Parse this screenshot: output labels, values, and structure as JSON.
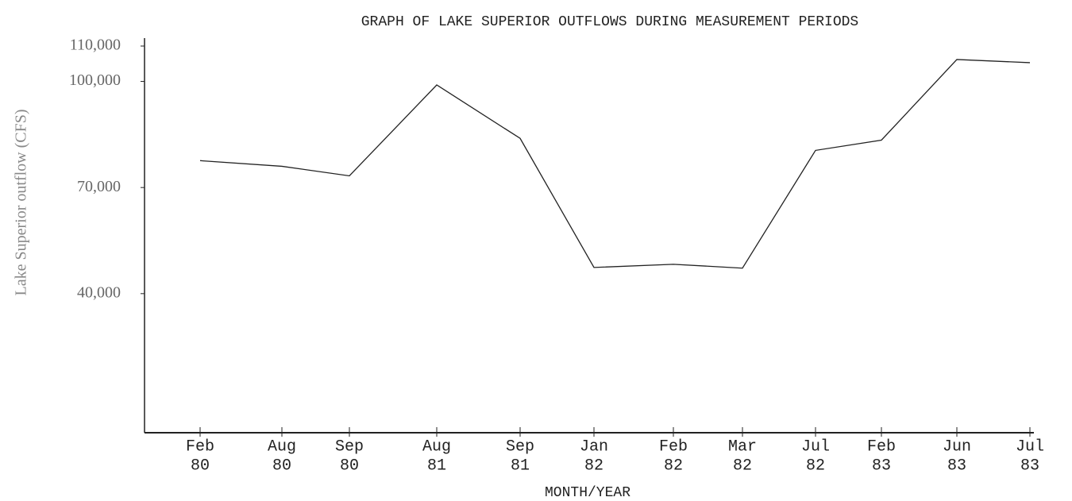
{
  "chart_data": {
    "type": "line",
    "title": "GRAPH OF LAKE SUPERIOR OUTFLOWS DURING MEASUREMENT PERIODS",
    "xlabel": "MONTH/YEAR",
    "ylabel": "Lake Superior outflow (CFS)",
    "categories": [
      [
        "Feb",
        "80"
      ],
      [
        "Aug",
        "80"
      ],
      [
        "Sep",
        "80"
      ],
      [
        "Aug",
        "81"
      ],
      [
        "Sep",
        "81"
      ],
      [
        "Jan",
        "82"
      ],
      [
        "Feb",
        "82"
      ],
      [
        "Mar",
        "82"
      ],
      [
        "Jul",
        "82"
      ],
      [
        "Feb",
        "83"
      ],
      [
        "Jun",
        "83"
      ],
      [
        "Jul",
        "83"
      ]
    ],
    "series": [
      {
        "name": "Lake Superior outflow",
        "color": "#222222",
        "values": [
          77600,
          76000,
          73300,
          99000,
          83900,
          47400,
          48300,
          47200,
          80500,
          83400,
          106200,
          105300
        ]
      }
    ],
    "ylim": [
      0,
      110000
    ],
    "yticks": [
      {
        "value": 40000,
        "label": "40,000"
      },
      {
        "value": 70000,
        "label": "70,000"
      },
      {
        "value": 100000,
        "label": "100,000"
      },
      {
        "value": 110000,
        "label": "110,000"
      }
    ],
    "grid": false
  }
}
